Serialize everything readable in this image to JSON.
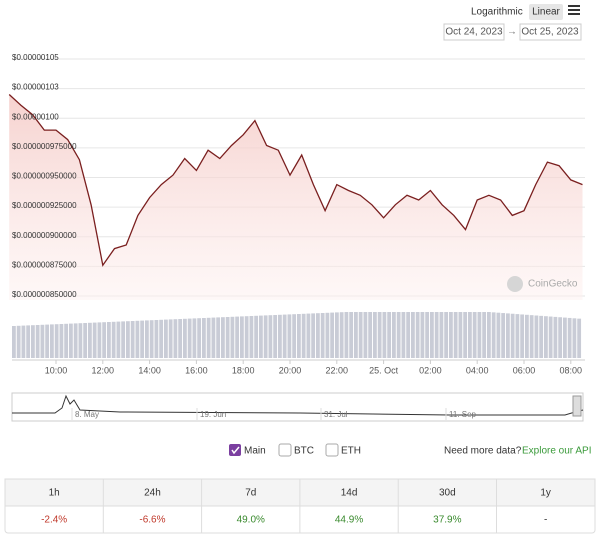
{
  "controls": {
    "scale_options": [
      "Logarithmic",
      "Linear"
    ],
    "date_from": "Oct 24, 2023",
    "date_to": "Oct 25, 2023"
  },
  "chart_data": {
    "type": "line",
    "watermark": "CoinGecko",
    "categories": [
      null,
      null,
      null,
      null,
      "10:00",
      null,
      null,
      null,
      "12:00",
      null,
      null,
      null,
      "14:00",
      null,
      null,
      null,
      "16:00",
      null,
      null,
      null,
      "18:00",
      null,
      null,
      null,
      "20:00",
      null,
      null,
      null,
      "22:00",
      null,
      null,
      null,
      "25. Oct",
      null,
      null,
      null,
      "02:00",
      null,
      null,
      null,
      "04:00",
      null,
      null,
      null,
      "06:00",
      null,
      null,
      null,
      "08:00",
      null
    ],
    "series": [
      {
        "name": "Main",
        "color": "#7a1f1f",
        "values": [
          1.02e-06,
          1.011e-06,
          1.003e-06,
          9.9e-07,
          9.9e-07,
          9.82e-07,
          9.65e-07,
          9.27e-07,
          8.76e-07,
          8.9e-07,
          8.93e-07,
          9.18e-07,
          9.33e-07,
          9.44e-07,
          9.52e-07,
          9.66e-07,
          9.56e-07,
          9.73e-07,
          9.66e-07,
          9.77e-07,
          9.86e-07,
          9.98e-07,
          9.77e-07,
          9.73e-07,
          9.52e-07,
          9.69e-07,
          9.44e-07,
          9.22e-07,
          9.44e-07,
          9.39e-07,
          9.35e-07,
          9.27e-07,
          9.16e-07,
          9.27e-07,
          9.35e-07,
          9.31e-07,
          9.39e-07,
          9.27e-07,
          9.18e-07,
          9.06e-07,
          9.31e-07,
          9.35e-07,
          9.31e-07,
          9.18e-07,
          9.22e-07,
          9.44e-07,
          9.63e-07,
          9.6e-07,
          9.48e-07,
          9.44e-07
        ]
      }
    ],
    "ylim": [
      8.5e-07,
      1.05e-06
    ],
    "yticks": [
      {
        "value": 1.05e-06,
        "label": "$0.00000105"
      },
      {
        "value": 1.025e-06,
        "label": "$0.00000103"
      },
      {
        "value": 1e-06,
        "label": "$0.00000100"
      },
      {
        "value": 9.75e-07,
        "label": "$0.000000975000"
      },
      {
        "value": 9.5e-07,
        "label": "$0.000000950000"
      },
      {
        "value": 9.25e-07,
        "label": "$0.000000925000"
      },
      {
        "value": 9e-07,
        "label": "$0.000000900000"
      },
      {
        "value": 8.75e-07,
        "label": "$0.000000875000"
      },
      {
        "value": 8.5e-07,
        "label": "$0.000000850000"
      }
    ],
    "grid": true,
    "navigator_labels": [
      "8. May",
      "19. Jun",
      "31. Jul",
      "11. Sep"
    ],
    "legend": [
      "Main",
      "BTC",
      "ETH"
    ]
  },
  "api_note": {
    "question": "Need more data?",
    "link": "Explore our API"
  },
  "table": {
    "headers": [
      "1h",
      "24h",
      "7d",
      "14d",
      "30d",
      "1y"
    ],
    "values": [
      "-2.4%",
      "-6.6%",
      "49.0%",
      "44.9%",
      "37.9%",
      "-"
    ]
  }
}
